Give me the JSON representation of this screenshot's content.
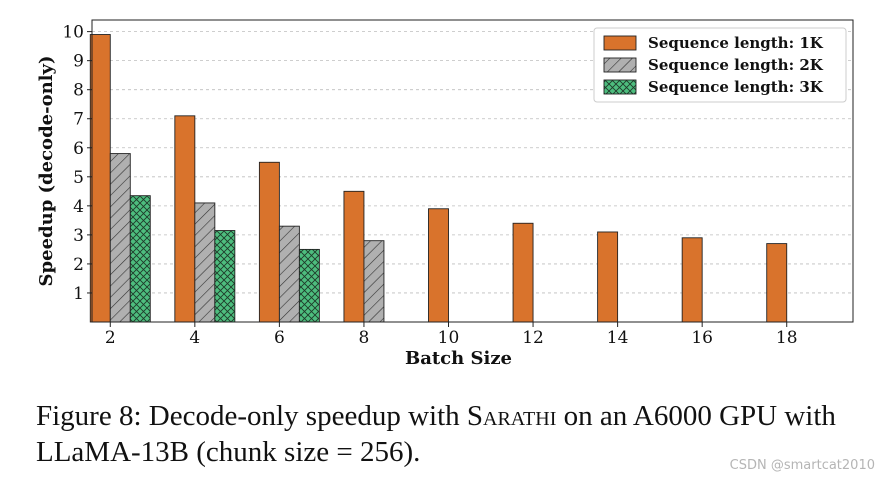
{
  "chart_data": {
    "type": "bar",
    "xlabel": "Batch Size",
    "ylabel": "Speedup (decode-only)",
    "ylim": [
      0,
      10.4
    ],
    "yticks": [
      "1",
      "2",
      "3",
      "4",
      "5",
      "6",
      "7",
      "8",
      "9",
      "10"
    ],
    "grid": "horizontal dashed",
    "legend_position": "top-right",
    "categories": [
      "2",
      "4",
      "6",
      "8",
      "10",
      "12",
      "14",
      "16",
      "18"
    ],
    "series": [
      {
        "name": "Sequence length: 1K",
        "color": "#d9732c",
        "pattern": "solid",
        "values": [
          9.9,
          7.1,
          5.5,
          4.5,
          3.9,
          3.4,
          3.1,
          2.9,
          2.7
        ]
      },
      {
        "name": "Sequence length: 2K",
        "color": "#b0b0b0",
        "pattern": "hatch-diagonal",
        "values": [
          5.8,
          4.1,
          3.3,
          2.8,
          0,
          0,
          0,
          0,
          0
        ]
      },
      {
        "name": "Sequence length: 3K",
        "color": "#4dbd7e",
        "pattern": "crosshatch",
        "values": [
          4.35,
          3.15,
          2.5,
          0,
          0,
          0,
          0,
          0,
          0
        ]
      }
    ]
  },
  "caption": {
    "prefix": "Figure 8: Decode-only speedup with ",
    "system": "Sarathi",
    "suffix": " on an A6000 GPU with LLaMA-13B (chunk size = 256)."
  },
  "watermark": "CSDN @smartcat2010"
}
